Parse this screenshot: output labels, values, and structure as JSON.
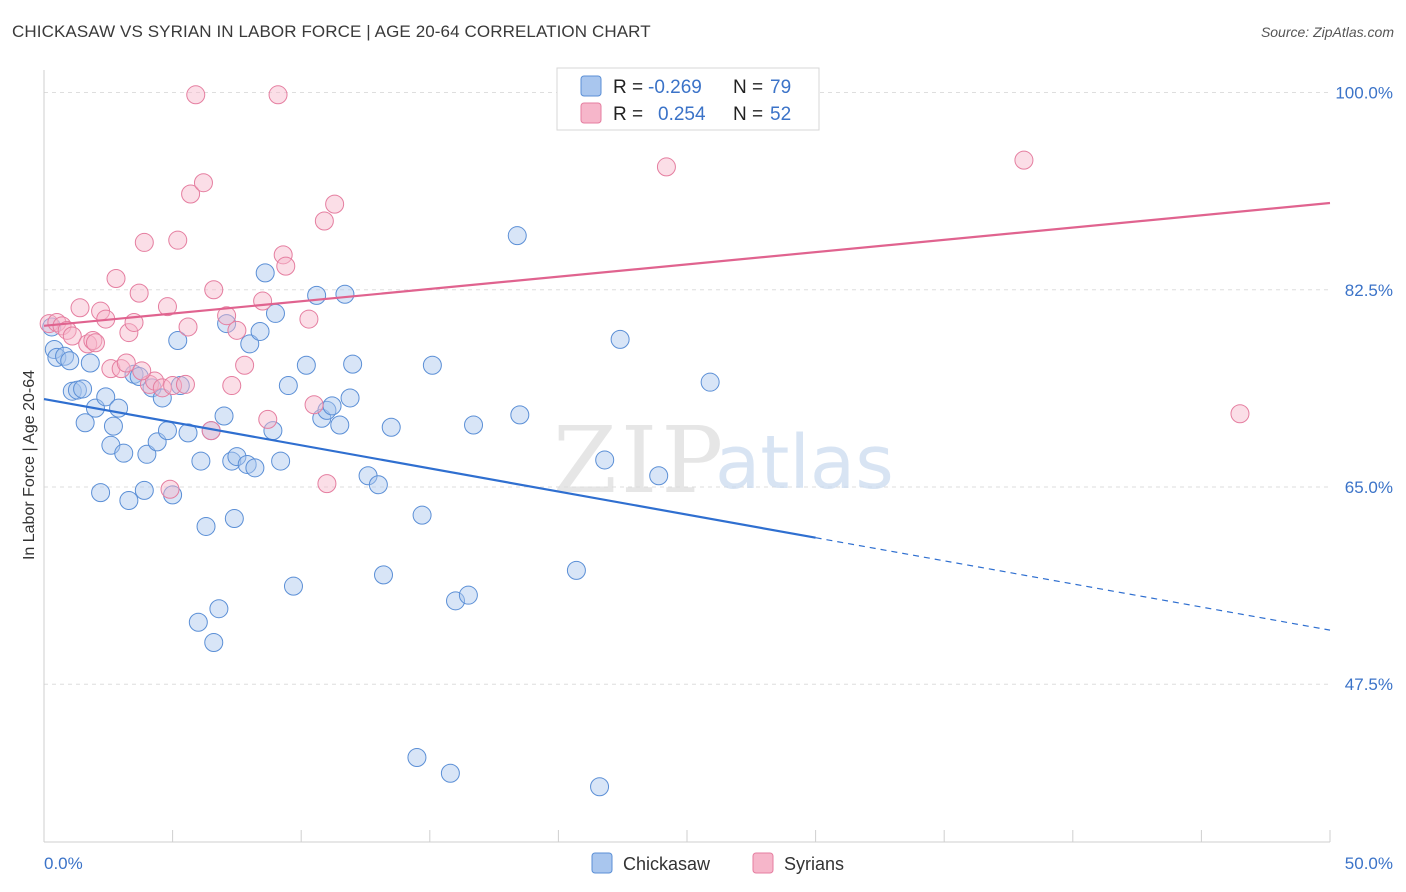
{
  "title": "CHICKASAW VS SYRIAN IN LABOR FORCE | AGE 20-64 CORRELATION CHART",
  "source": "Source: ZipAtlas.com",
  "watermark": {
    "zip": "ZIP",
    "atlas": "atlas"
  },
  "colors": {
    "blue_fill": "#a9c6ee",
    "blue_stroke": "#5b8fd6",
    "blue_line": "#2f6fd0",
    "pink_fill": "#f6b6ca",
    "pink_stroke": "#e57ea0",
    "pink_line": "#e0638f",
    "grid": "#dedede",
    "axis_text": "#3b73c8"
  },
  "legend": {
    "row1": {
      "r_label": "R =",
      "r_value": "-0.269",
      "n_label": "N =",
      "n_value": "79"
    },
    "row2": {
      "r_label": "R =",
      "r_value": "0.254",
      "n_label": "N =",
      "n_value": "52"
    }
  },
  "chart_data": {
    "type": "scatter",
    "title": "CHICKASAW VS SYRIAN IN LABOR FORCE | AGE 20-64 CORRELATION CHART",
    "xlabel": "",
    "ylabel": "In Labor Force | Age 20-64",
    "xlim": [
      0,
      50
    ],
    "ylim": [
      33.5,
      102
    ],
    "x_tick_labels": [
      "0.0%",
      "50.0%"
    ],
    "y_ticks": [
      47.5,
      65.0,
      82.5,
      100.0
    ],
    "y_tick_labels": [
      "47.5%",
      "65.0%",
      "82.5%",
      "100.0%"
    ],
    "grid": true,
    "legend_position": "top-center",
    "series": [
      {
        "name": "Chickasaw",
        "r": -0.269,
        "n": 79,
        "trend": {
          "x_start": 0,
          "y_start": 72.8,
          "x_end_solid": 30,
          "y_end_solid": 60.5,
          "x_end": 50,
          "y_end": 52.3
        },
        "points": [
          [
            0.3,
            79.2
          ],
          [
            0.4,
            77.2
          ],
          [
            0.5,
            76.5
          ],
          [
            0.8,
            76.6
          ],
          [
            1.0,
            76.2
          ],
          [
            1.1,
            73.5
          ],
          [
            1.3,
            73.6
          ],
          [
            1.6,
            70.7
          ],
          [
            1.8,
            76.0
          ],
          [
            2.0,
            72.0
          ],
          [
            2.2,
            64.5
          ],
          [
            2.4,
            73.0
          ],
          [
            2.6,
            68.7
          ],
          [
            2.7,
            70.4
          ],
          [
            2.9,
            72.0
          ],
          [
            3.1,
            68.0
          ],
          [
            3.3,
            63.8
          ],
          [
            3.5,
            75.0
          ],
          [
            3.7,
            74.8
          ],
          [
            3.9,
            64.7
          ],
          [
            4.0,
            67.9
          ],
          [
            4.2,
            73.8
          ],
          [
            4.4,
            69.0
          ],
          [
            4.6,
            72.9
          ],
          [
            4.8,
            70.0
          ],
          [
            5.0,
            64.3
          ],
          [
            5.2,
            78.0
          ],
          [
            5.3,
            74.0
          ],
          [
            5.6,
            69.8
          ],
          [
            6.0,
            53.0
          ],
          [
            6.1,
            67.3
          ],
          [
            6.3,
            61.5
          ],
          [
            6.5,
            70.0
          ],
          [
            6.6,
            51.2
          ],
          [
            6.8,
            54.2
          ],
          [
            7.0,
            71.3
          ],
          [
            7.1,
            79.5
          ],
          [
            7.3,
            67.3
          ],
          [
            7.4,
            62.2
          ],
          [
            7.5,
            67.7
          ],
          [
            7.9,
            67.0
          ],
          [
            8.0,
            77.7
          ],
          [
            8.2,
            66.7
          ],
          [
            8.4,
            78.8
          ],
          [
            8.6,
            84.0
          ],
          [
            8.9,
            70.0
          ],
          [
            9.0,
            80.4
          ],
          [
            9.2,
            67.3
          ],
          [
            9.5,
            74.0
          ],
          [
            9.7,
            56.2
          ],
          [
            10.2,
            75.8
          ],
          [
            10.6,
            82.0
          ],
          [
            10.8,
            71.1
          ],
          [
            11.0,
            71.8
          ],
          [
            11.2,
            72.2
          ],
          [
            11.5,
            70.5
          ],
          [
            11.7,
            82.1
          ],
          [
            11.9,
            72.9
          ],
          [
            12.0,
            75.9
          ],
          [
            12.6,
            66.0
          ],
          [
            13.0,
            65.2
          ],
          [
            13.2,
            57.2
          ],
          [
            13.5,
            70.3
          ],
          [
            14.5,
            41.0
          ],
          [
            14.7,
            62.5
          ],
          [
            15.1,
            75.8
          ],
          [
            15.8,
            39.6
          ],
          [
            16.0,
            54.9
          ],
          [
            16.5,
            55.4
          ],
          [
            16.7,
            70.5
          ],
          [
            18.4,
            87.3
          ],
          [
            18.5,
            71.4
          ],
          [
            20.7,
            57.6
          ],
          [
            21.6,
            38.4
          ],
          [
            21.8,
            67.4
          ],
          [
            22.4,
            78.1
          ],
          [
            23.9,
            66.0
          ],
          [
            25.9,
            74.3
          ],
          [
            1.5,
            73.7
          ]
        ]
      },
      {
        "name": "Syrians",
        "r": 0.254,
        "n": 52,
        "trend": {
          "x_start": 0,
          "y_start": 79.3,
          "x_end": 50,
          "y_end": 90.2
        },
        "points": [
          [
            0.2,
            79.5
          ],
          [
            0.5,
            79.6
          ],
          [
            0.7,
            79.3
          ],
          [
            0.9,
            78.9
          ],
          [
            1.1,
            78.4
          ],
          [
            1.4,
            80.9
          ],
          [
            1.7,
            77.7
          ],
          [
            1.9,
            78.0
          ],
          [
            2.2,
            80.6
          ],
          [
            2.4,
            79.9
          ],
          [
            2.6,
            75.5
          ],
          [
            2.8,
            83.5
          ],
          [
            3.0,
            75.5
          ],
          [
            3.2,
            76.0
          ],
          [
            3.3,
            78.7
          ],
          [
            3.5,
            79.6
          ],
          [
            3.7,
            82.2
          ],
          [
            3.9,
            86.7
          ],
          [
            4.1,
            74.1
          ],
          [
            4.3,
            74.4
          ],
          [
            4.6,
            73.8
          ],
          [
            4.8,
            81.0
          ],
          [
            4.9,
            64.8
          ],
          [
            5.0,
            74.0
          ],
          [
            5.2,
            86.9
          ],
          [
            5.5,
            74.1
          ],
          [
            5.6,
            79.2
          ],
          [
            5.7,
            91.0
          ],
          [
            5.9,
            99.8
          ],
          [
            6.2,
            92.0
          ],
          [
            6.5,
            70.0
          ],
          [
            6.6,
            82.5
          ],
          [
            7.1,
            80.2
          ],
          [
            7.3,
            74.0
          ],
          [
            7.5,
            78.9
          ],
          [
            7.8,
            75.8
          ],
          [
            8.5,
            81.5
          ],
          [
            8.7,
            71.0
          ],
          [
            9.1,
            99.8
          ],
          [
            9.3,
            85.6
          ],
          [
            9.4,
            84.6
          ],
          [
            10.3,
            79.9
          ],
          [
            10.5,
            72.3
          ],
          [
            10.9,
            88.6
          ],
          [
            11.0,
            65.3
          ],
          [
            11.3,
            90.1
          ],
          [
            24.2,
            93.4
          ],
          [
            28.1,
            99.6
          ],
          [
            38.1,
            94.0
          ],
          [
            46.5,
            71.5
          ],
          [
            3.8,
            75.3
          ],
          [
            2.0,
            77.8
          ]
        ]
      }
    ]
  },
  "bottom_legend": {
    "item1": "Chickasaw",
    "item2": "Syrians"
  }
}
